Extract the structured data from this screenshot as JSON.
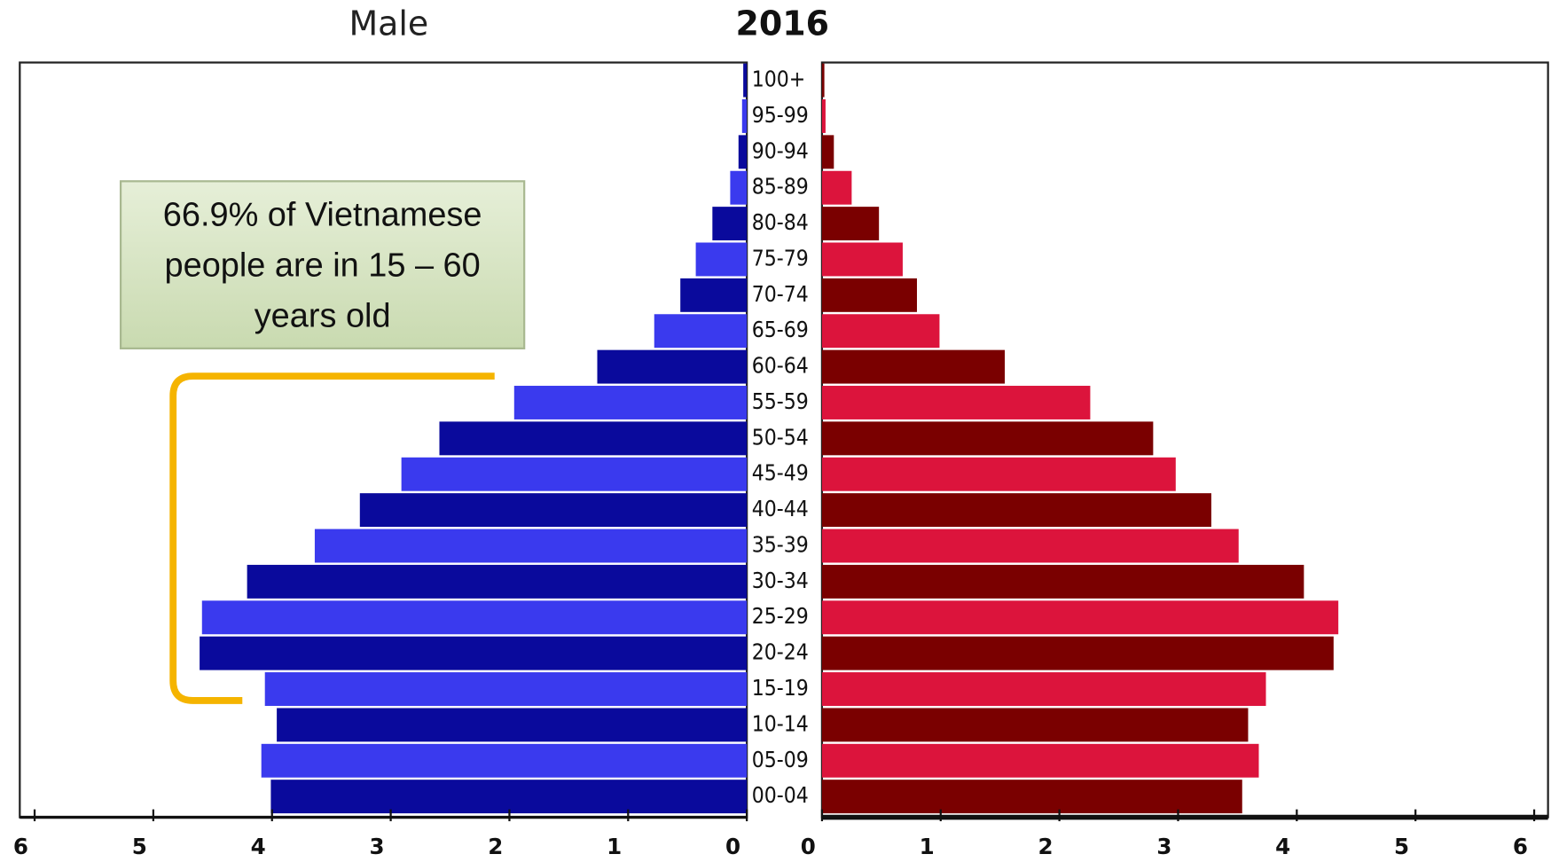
{
  "chart_data": {
    "type": "pyramid",
    "title": "2016",
    "left_label": "Male",
    "annotation": [
      "66.9% of Vietnamese",
      "people are in 15 – 60",
      "years old"
    ],
    "categories": [
      "100+",
      "95-99",
      "90-94",
      "85-89",
      "80-84",
      "75-79",
      "70-74",
      "65-69",
      "60-64",
      "55-59",
      "50-54",
      "45-49",
      "40-44",
      "35-39",
      "30-34",
      "25-29",
      "20-24",
      "15-19",
      "10-14",
      "05-09",
      "00-04"
    ],
    "series": [
      {
        "side": "left",
        "colors": [
          "#0a0a9c",
          "#3a3aee"
        ],
        "values": [
          0.03,
          0.04,
          0.07,
          0.14,
          0.29,
          0.43,
          0.56,
          0.78,
          1.26,
          1.96,
          2.59,
          2.91,
          3.26,
          3.64,
          4.21,
          4.59,
          4.61,
          4.06,
          3.96,
          4.09,
          4.01
        ]
      },
      {
        "side": "right",
        "colors": [
          "#7a0000",
          "#dc143c"
        ],
        "values": [
          0.02,
          0.03,
          0.1,
          0.25,
          0.48,
          0.68,
          0.8,
          0.99,
          1.54,
          2.26,
          2.79,
          2.98,
          3.28,
          3.51,
          4.06,
          4.35,
          4.31,
          3.74,
          3.59,
          3.68,
          3.54
        ]
      }
    ],
    "xlim": [
      0,
      6
    ],
    "xticks": [
      0,
      1,
      2,
      3,
      4,
      5,
      6
    ]
  }
}
